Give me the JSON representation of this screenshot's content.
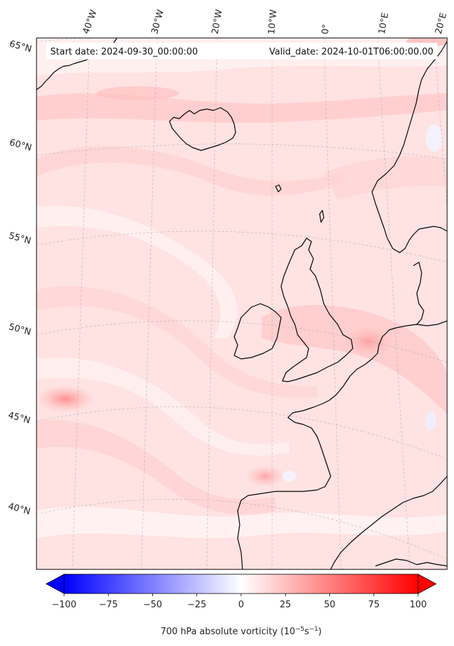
{
  "header": {
    "start_label": "Start date: 2024-09-30_00:00:00",
    "valid_label": "Valid_date: 2024-10-01T06:00:00.00"
  },
  "longitude_labels": [
    "40°W",
    "30°W",
    "20°W",
    "10°W",
    "0°",
    "10°E",
    "20°E"
  ],
  "latitude_labels": [
    "65°N",
    "60°N",
    "55°N",
    "50°N",
    "45°N",
    "40°N"
  ],
  "colorbar": {
    "label_main": "700 hPa absolute vorticity (10",
    "label_exp1": "−5",
    "label_mid": "s",
    "label_exp2": "−1",
    "label_end": ")",
    "min": -100,
    "max": 100,
    "ticks": [
      "−100",
      "−75",
      "−50",
      "−25",
      "0",
      "25",
      "50",
      "75",
      "100"
    ],
    "colors": {
      "negative": "#0000ff",
      "zero": "#ffffff",
      "positive": "#ff0000"
    }
  },
  "map": {
    "field_base_color": "#ffe3e3",
    "coastline_color": "#000000",
    "gridline_color": "#b0b0b0"
  }
}
